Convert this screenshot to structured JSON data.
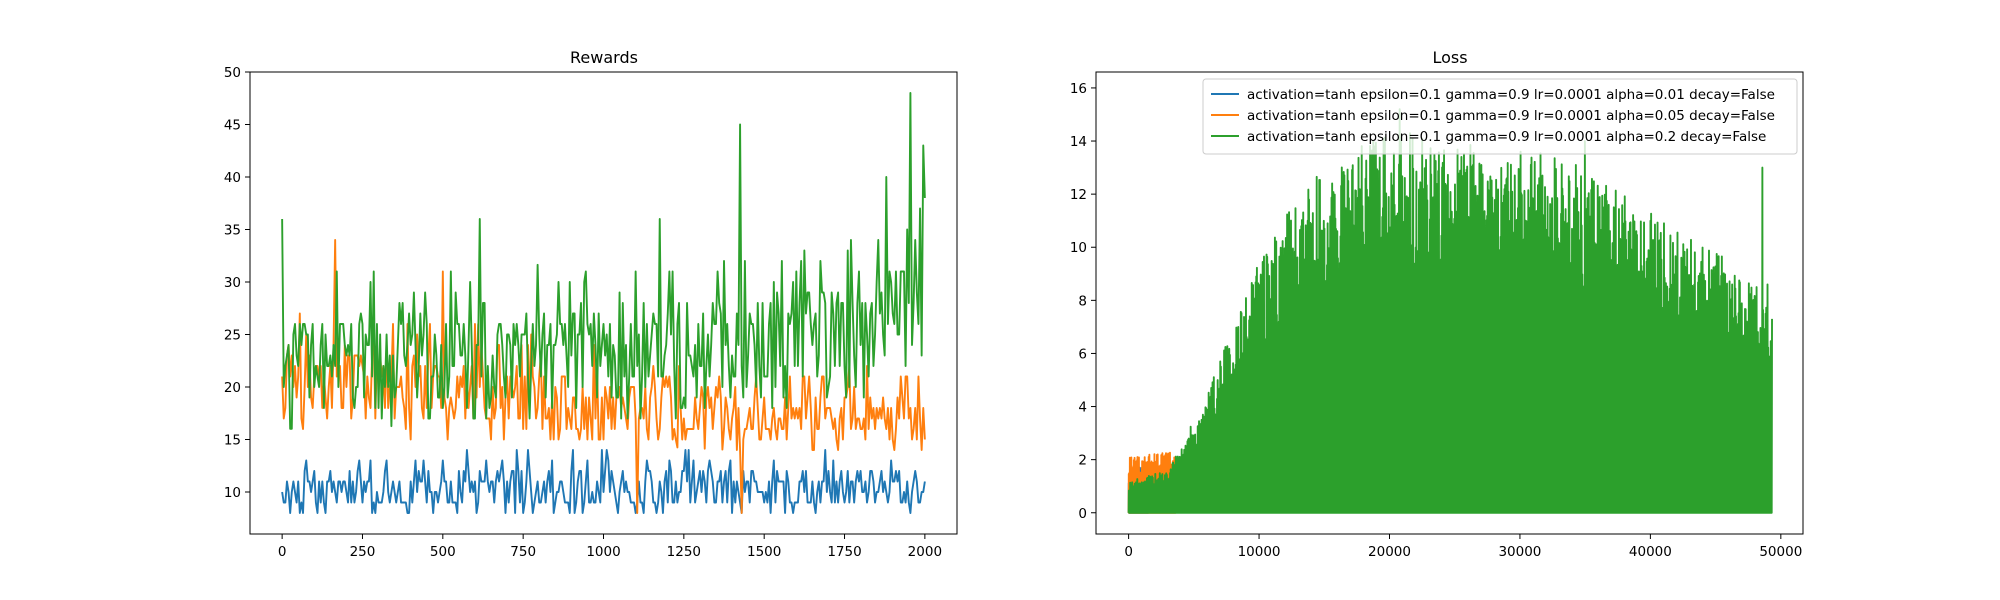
{
  "chart_data": [
    {
      "type": "line",
      "title": "Rewards",
      "xlabel": "",
      "ylabel": "",
      "xlim": [
        -100,
        2100
      ],
      "ylim": [
        6,
        50
      ],
      "xticks": [
        0,
        250,
        500,
        750,
        1000,
        1250,
        1500,
        1750,
        2000
      ],
      "xtick_labels": [
        "0",
        "250",
        "500",
        "750",
        "1000",
        "1250",
        "1500",
        "1750",
        "2000"
      ],
      "yticks": [
        10,
        15,
        20,
        25,
        30,
        35,
        40,
        45,
        50
      ],
      "ytick_labels": [
        "10",
        "15",
        "20",
        "25",
        "30",
        "35",
        "40",
        "45",
        "50"
      ],
      "grid": false,
      "legend": "none",
      "x_range": [
        0,
        2000
      ],
      "sample_count": 400,
      "series": [
        {
          "name": "alpha=0.01",
          "color": "#1f77b4",
          "seed": 11,
          "segments": [
            [
              0,
              10.5,
              8,
              14
            ],
            [
              2000,
              10.5,
              8,
              14
            ]
          ],
          "spikes": [
            {
              "x": 1430,
              "y": 8
            },
            {
              "x": 1100,
              "y": 8
            }
          ]
        },
        {
          "name": "alpha=0.05",
          "color": "#ff7f0e",
          "seed": 23,
          "segments": [
            [
              0,
              21.5,
              15,
              28
            ],
            [
              700,
              19.5,
              15,
              26
            ],
            [
              1400,
              17.5,
              14,
              22
            ],
            [
              2000,
              17,
              14,
              22
            ]
          ],
          "spikes": [
            {
              "x": 165,
              "y": 34
            },
            {
              "x": 500,
              "y": 31
            },
            {
              "x": 1105,
              "y": 8
            },
            {
              "x": 1430,
              "y": 8
            }
          ]
        },
        {
          "name": "alpha=0.2",
          "color": "#2ca02c",
          "seed": 37,
          "segments": [
            [
              0,
              23,
              16,
              31
            ],
            [
              1250,
              24,
              17,
              32
            ],
            [
              1750,
              26.5,
              18,
              34
            ],
            [
              2000,
              29,
              22,
              39
            ]
          ],
          "spikes": [
            {
              "x": 0,
              "y": 36
            },
            {
              "x": 615,
              "y": 36
            },
            {
              "x": 1175,
              "y": 36
            },
            {
              "x": 1425,
              "y": 45
            },
            {
              "x": 1880,
              "y": 40
            },
            {
              "x": 1955,
              "y": 48
            },
            {
              "x": 1995,
              "y": 43
            }
          ]
        }
      ]
    },
    {
      "type": "line",
      "title": "Loss",
      "xlabel": "",
      "ylabel": "",
      "xlim": [
        -2500,
        51700
      ],
      "ylim": [
        -0.8,
        16.6
      ],
      "xticks": [
        0,
        10000,
        20000,
        30000,
        40000,
        50000
      ],
      "xtick_labels": [
        "0",
        "10000",
        "20000",
        "30000",
        "40000",
        "50000"
      ],
      "yticks": [
        0,
        2,
        4,
        6,
        8,
        10,
        12,
        14,
        16
      ],
      "ytick_labels": [
        "0",
        "2",
        "4",
        "6",
        "8",
        "10",
        "12",
        "14",
        "16"
      ],
      "grid": false,
      "legend": "upper-right",
      "x_range": [
        0,
        49300
      ],
      "sample_count": 1000,
      "series": [
        {
          "name": "activation=tanh epsilon=0.1 gamma=0.9 lr=0.0001 alpha=0.01 decay=False",
          "color": "#1f77b4",
          "seed": 5,
          "x_range": [
            0,
            1500
          ],
          "sample_count": 60,
          "envelope": [
            [
              0,
              1.6
            ],
            [
              1500,
              1.8
            ]
          ]
        },
        {
          "name": "activation=tanh epsilon=0.1 gamma=0.9 lr=0.0001 alpha=0.05 decay=False",
          "color": "#ff7f0e",
          "seed": 8,
          "x_range": [
            0,
            3600
          ],
          "sample_count": 130,
          "envelope": [
            [
              0,
              2.1
            ],
            [
              3600,
              2.3
            ]
          ]
        },
        {
          "name": "activation=tanh epsilon=0.1 gamma=0.9 lr=0.0001 alpha=0.2 decay=False",
          "color": "#2ca02c",
          "seed": 19,
          "envelope": [
            [
              0,
              1.2
            ],
            [
              3000,
              1.6
            ],
            [
              5000,
              3.5
            ],
            [
              7500,
              6.5
            ],
            [
              10000,
              9.5
            ],
            [
              13000,
              12.0
            ],
            [
              16000,
              13.5
            ],
            [
              21000,
              14.5
            ],
            [
              27000,
              14.0
            ],
            [
              33000,
              13.5
            ],
            [
              38000,
              12.0
            ],
            [
              42000,
              10.8
            ],
            [
              46000,
              9.5
            ],
            [
              49300,
              8.0
            ]
          ],
          "spikes": [
            {
              "x": 20800,
              "y": 15.2
            },
            {
              "x": 35000,
              "y": 14.0
            },
            {
              "x": 48600,
              "y": 13.0
            },
            {
              "x": 49000,
              "y": 8.6
            }
          ]
        }
      ]
    }
  ]
}
